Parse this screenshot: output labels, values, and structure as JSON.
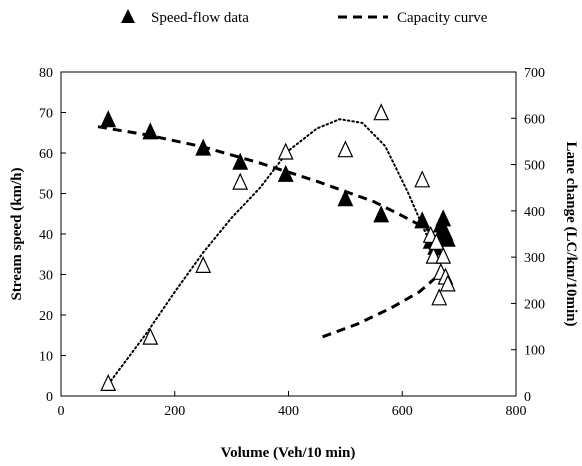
{
  "chart_data": {
    "type": "scatter",
    "xlabel": "Volume (Veh/10 min)",
    "ylabel": "Stream speed (km/h)",
    "y2label": "Lane change (LC/km/10min)",
    "xlim": [
      0,
      800
    ],
    "ylim": [
      0,
      80
    ],
    "y2lim": [
      0,
      700
    ],
    "x_ticks": [
      0,
      200,
      400,
      600,
      800
    ],
    "y_ticks": [
      0,
      10,
      20,
      30,
      40,
      50,
      60,
      70,
      80
    ],
    "y2_ticks": [
      0,
      100,
      200,
      300,
      400,
      500,
      600,
      700
    ],
    "legend": {
      "position": "top",
      "entries": [
        {
          "label": "Speed-flow data",
          "marker": "filled-triangle"
        },
        {
          "label": "Capacity curve",
          "marker": "dashed-line"
        }
      ]
    },
    "series": [
      {
        "name": "Speed-flow data",
        "axis": "left",
        "marker": "filled-triangle",
        "points": [
          [
            83,
            68
          ],
          [
            157,
            65
          ],
          [
            250,
            61
          ],
          [
            315,
            57.5
          ],
          [
            395,
            54.5
          ],
          [
            500,
            48.5
          ],
          [
            563,
            44.5
          ],
          [
            635,
            43
          ],
          [
            650,
            38
          ],
          [
            658,
            36.5
          ],
          [
            665,
            39
          ],
          [
            668,
            42
          ],
          [
            672,
            43.5
          ],
          [
            676,
            40
          ],
          [
            680,
            38.5
          ]
        ]
      },
      {
        "name": "Capacity curve",
        "axis": "left",
        "style": "dashed",
        "points": [
          [
            65,
            66.5
          ],
          [
            150,
            64.5
          ],
          [
            250,
            61.5
          ],
          [
            350,
            57.5
          ],
          [
            450,
            53
          ],
          [
            500,
            50.5
          ],
          [
            550,
            48
          ],
          [
            600,
            44.5
          ],
          [
            640,
            41.5
          ],
          [
            665,
            39
          ]
        ]
      },
      {
        "axis": "right",
        "marker": "open-triangle",
        "points": [
          [
            83,
            25
          ],
          [
            157,
            125
          ],
          [
            250,
            280
          ],
          [
            315,
            460
          ],
          [
            395,
            525
          ],
          [
            500,
            530
          ],
          [
            563,
            610
          ],
          [
            635,
            465
          ],
          [
            650,
            345
          ],
          [
            655,
            300
          ],
          [
            660,
            330
          ],
          [
            665,
            210
          ],
          [
            668,
            265
          ],
          [
            672,
            300
          ],
          [
            676,
            255
          ],
          [
            680,
            240
          ]
        ]
      },
      {
        "axis": "right",
        "style": "dotted",
        "points": [
          [
            83,
            25
          ],
          [
            150,
            135
          ],
          [
            200,
            225
          ],
          [
            250,
            310
          ],
          [
            300,
            385
          ],
          [
            350,
            450
          ],
          [
            400,
            530
          ],
          [
            450,
            578
          ],
          [
            490,
            598
          ],
          [
            530,
            590
          ],
          [
            570,
            540
          ],
          [
            610,
            440
          ],
          [
            640,
            355
          ],
          [
            665,
            300
          ]
        ]
      },
      {
        "axis": "right",
        "style": "dashed",
        "points": [
          [
            460,
            128
          ],
          [
            520,
            155
          ],
          [
            580,
            190
          ],
          [
            630,
            225
          ],
          [
            665,
            262
          ]
        ]
      }
    ]
  }
}
